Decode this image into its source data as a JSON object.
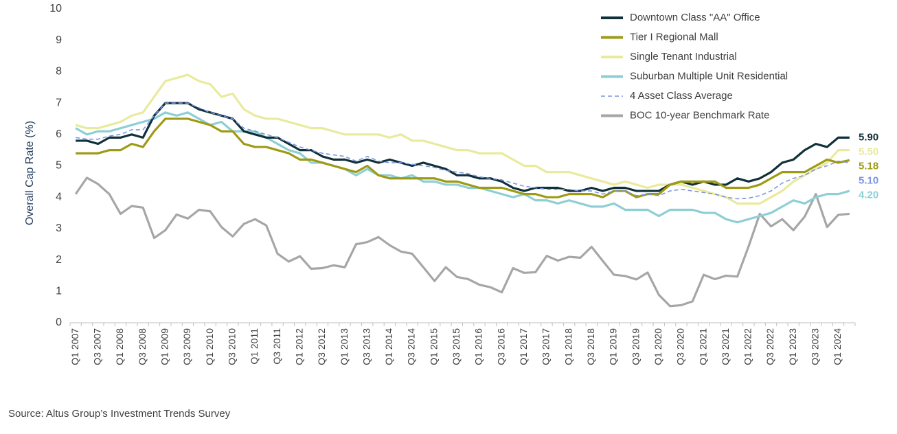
{
  "chart_data": {
    "type": "line",
    "y_label": "Overall Cap Rate (%)",
    "source": "Source:  Altus Group’s Investment Trends Survey",
    "categories": [
      "Q1 2007",
      null,
      "Q3 2007",
      null,
      "Q1 2008",
      null,
      "Q3 2008",
      null,
      "Q1 2009",
      null,
      "Q3 2009",
      null,
      "Q1 2010",
      null,
      "Q3 2010",
      null,
      "Q1 2011",
      null,
      "Q3 2011",
      null,
      "Q1 2012",
      null,
      "Q3 2012",
      null,
      "Q1 2013",
      null,
      "Q3 2013",
      null,
      "Q1 2014",
      null,
      "Q3 2014",
      null,
      "Q1 2015",
      null,
      "Q3 2015",
      null,
      "Q1 2016",
      null,
      "Q3 2016",
      null,
      "Q1 2017",
      null,
      "Q3 2017",
      null,
      "Q1 2018",
      null,
      "Q3 2018",
      null,
      "Q1 2019",
      null,
      "Q3 2019",
      null,
      "Q1 2020",
      null,
      "Q3 2020",
      null,
      "Q1 2021",
      null,
      "Q3 2021",
      null,
      "Q1 2022",
      null,
      "Q3 2022",
      null,
      "Q1 2023",
      null,
      "Q3 2023",
      null,
      "Q1 2024",
      null
    ],
    "ylim": [
      0,
      10
    ],
    "yticks": [
      0,
      1,
      2,
      3,
      4,
      5,
      6,
      7,
      8,
      9,
      10
    ],
    "legend": "top-right",
    "series": [
      {
        "name": "Downtown Class \"AA\" Office",
        "color": "#10303a",
        "line_style": "solid",
        "values": [
          5.8,
          5.8,
          5.7,
          5.9,
          5.9,
          6.0,
          5.9,
          6.6,
          7.0,
          7.0,
          7.0,
          6.8,
          6.7,
          6.6,
          6.5,
          6.1,
          6.0,
          5.9,
          5.9,
          5.7,
          5.5,
          5.5,
          5.3,
          5.2,
          5.2,
          5.1,
          5.2,
          5.1,
          5.2,
          5.1,
          5.0,
          5.1,
          5.0,
          4.9,
          4.7,
          4.7,
          4.6,
          4.6,
          4.5,
          4.3,
          4.2,
          4.3,
          4.3,
          4.3,
          4.2,
          4.2,
          4.3,
          4.2,
          4.3,
          4.3,
          4.2,
          4.2,
          4.2,
          4.4,
          4.5,
          4.4,
          4.5,
          4.4,
          4.4,
          4.6,
          4.5,
          4.6,
          4.8,
          5.1,
          5.2,
          5.5,
          5.7,
          5.6,
          5.9,
          5.9
        ],
        "value_labels": [
          null,
          null,
          null,
          null,
          null,
          null,
          null,
          null,
          null,
          null,
          null,
          null,
          null,
          null,
          null,
          null,
          null,
          null,
          null,
          null,
          null,
          null,
          null,
          null,
          null,
          null,
          null,
          null,
          null,
          null,
          null,
          null,
          null,
          null,
          null,
          null,
          null,
          null,
          null,
          null,
          null,
          null,
          null,
          null,
          null,
          null,
          null,
          null,
          null,
          null,
          null,
          null,
          null,
          null,
          null,
          null,
          null,
          null,
          null,
          null,
          null,
          null,
          null,
          null,
          null,
          null,
          null,
          null,
          null,
          "5.90"
        ]
      },
      {
        "name": "Tier I Regional Mall",
        "color": "#9e9a14",
        "line_style": "solid",
        "values": [
          5.4,
          5.4,
          5.4,
          5.5,
          5.5,
          5.7,
          5.6,
          6.1,
          6.5,
          6.5,
          6.5,
          6.4,
          6.3,
          6.1,
          6.1,
          5.7,
          5.6,
          5.6,
          5.5,
          5.4,
          5.2,
          5.2,
          5.1,
          5.0,
          4.9,
          4.8,
          5.0,
          4.7,
          4.6,
          4.6,
          4.6,
          4.6,
          4.6,
          4.5,
          4.5,
          4.4,
          4.3,
          4.3,
          4.3,
          4.2,
          4.1,
          4.1,
          4.0,
          4.0,
          4.1,
          4.1,
          4.1,
          4.0,
          4.2,
          4.2,
          4.0,
          4.1,
          4.1,
          4.4,
          4.5,
          4.5,
          4.5,
          4.5,
          4.3,
          4.3,
          4.3,
          4.4,
          4.6,
          4.8,
          4.8,
          4.8,
          5.0,
          5.2,
          5.1,
          5.18
        ],
        "value_labels": [
          null,
          null,
          null,
          null,
          null,
          null,
          null,
          null,
          null,
          null,
          null,
          null,
          null,
          null,
          null,
          null,
          null,
          null,
          null,
          null,
          null,
          null,
          null,
          null,
          null,
          null,
          null,
          null,
          null,
          null,
          null,
          null,
          null,
          null,
          null,
          null,
          null,
          null,
          null,
          null,
          null,
          null,
          null,
          null,
          null,
          null,
          null,
          null,
          null,
          null,
          null,
          null,
          null,
          null,
          null,
          null,
          null,
          null,
          null,
          null,
          null,
          null,
          null,
          null,
          null,
          null,
          null,
          null,
          null,
          "5.18"
        ]
      },
      {
        "name": "Single Tenant Industrial",
        "color": "#e9ea9c",
        "line_style": "solid",
        "values": [
          6.3,
          6.2,
          6.2,
          6.3,
          6.4,
          6.6,
          6.7,
          7.2,
          7.7,
          7.8,
          7.9,
          7.7,
          7.6,
          7.2,
          7.3,
          6.8,
          6.6,
          6.5,
          6.5,
          6.4,
          6.3,
          6.2,
          6.2,
          6.1,
          6.0,
          6.0,
          6.0,
          6.0,
          5.9,
          6.0,
          5.8,
          5.8,
          5.7,
          5.6,
          5.5,
          5.5,
          5.4,
          5.4,
          5.4,
          5.2,
          5.0,
          5.0,
          4.8,
          4.8,
          4.8,
          4.7,
          4.6,
          4.5,
          4.4,
          4.5,
          4.4,
          4.3,
          4.4,
          4.4,
          4.4,
          4.3,
          4.2,
          4.1,
          4.0,
          3.8,
          3.8,
          3.8,
          4.0,
          4.2,
          4.5,
          4.7,
          4.9,
          5.1,
          5.5,
          5.5
        ],
        "value_labels": [
          null,
          null,
          null,
          null,
          null,
          null,
          null,
          null,
          null,
          null,
          null,
          null,
          null,
          null,
          null,
          null,
          null,
          null,
          null,
          null,
          null,
          null,
          null,
          null,
          null,
          null,
          null,
          null,
          null,
          null,
          null,
          null,
          null,
          null,
          null,
          null,
          null,
          null,
          null,
          null,
          null,
          null,
          null,
          null,
          null,
          null,
          null,
          null,
          null,
          null,
          null,
          null,
          null,
          null,
          null,
          null,
          null,
          null,
          null,
          null,
          null,
          null,
          null,
          null,
          null,
          null,
          null,
          null,
          null,
          "5.50"
        ]
      },
      {
        "name": "Suburban Multiple Unit Residential",
        "color": "#8dcfd4",
        "line_style": "solid",
        "values": [
          6.2,
          6.0,
          6.1,
          6.1,
          6.2,
          6.3,
          6.4,
          6.5,
          6.7,
          6.6,
          6.7,
          6.5,
          6.3,
          6.4,
          6.1,
          6.1,
          6.1,
          5.9,
          5.7,
          5.5,
          5.4,
          5.1,
          5.1,
          5.0,
          4.9,
          4.7,
          4.9,
          4.7,
          4.7,
          4.6,
          4.7,
          4.5,
          4.5,
          4.4,
          4.4,
          4.3,
          4.3,
          4.2,
          4.1,
          4.0,
          4.1,
          3.9,
          3.9,
          3.8,
          3.9,
          3.8,
          3.7,
          3.7,
          3.8,
          3.6,
          3.6,
          3.6,
          3.4,
          3.6,
          3.6,
          3.6,
          3.5,
          3.5,
          3.3,
          3.2,
          3.3,
          3.4,
          3.5,
          3.7,
          3.9,
          3.8,
          4.0,
          4.1,
          4.1,
          4.2
        ],
        "value_labels": [
          null,
          null,
          null,
          null,
          null,
          null,
          null,
          null,
          null,
          null,
          null,
          null,
          null,
          null,
          null,
          null,
          null,
          null,
          null,
          null,
          null,
          null,
          null,
          null,
          null,
          null,
          null,
          null,
          null,
          null,
          null,
          null,
          null,
          null,
          null,
          null,
          null,
          null,
          null,
          null,
          null,
          null,
          null,
          null,
          null,
          null,
          null,
          null,
          null,
          null,
          null,
          null,
          null,
          null,
          null,
          null,
          null,
          null,
          null,
          null,
          null,
          null,
          null,
          null,
          null,
          null,
          null,
          null,
          null,
          "4.20"
        ]
      },
      {
        "name": "4 Asset Class Average",
        "color": "#7c94e4",
        "line_style": "dashed",
        "values": [
          5.9,
          5.85,
          5.85,
          5.95,
          6.0,
          6.15,
          6.15,
          6.6,
          7.0,
          7.0,
          7.0,
          6.85,
          6.7,
          6.6,
          6.5,
          6.2,
          6.1,
          6.0,
          5.9,
          5.75,
          5.6,
          5.5,
          5.4,
          5.35,
          5.3,
          5.15,
          5.3,
          5.15,
          5.1,
          5.1,
          5.05,
          5.0,
          4.95,
          4.85,
          4.8,
          4.75,
          4.65,
          4.6,
          4.55,
          4.45,
          4.35,
          4.3,
          4.25,
          4.25,
          4.25,
          4.2,
          4.2,
          4.1,
          4.2,
          4.2,
          4.05,
          4.1,
          4.05,
          4.2,
          4.25,
          4.2,
          4.15,
          4.1,
          4.0,
          3.95,
          3.97,
          4.05,
          4.2,
          4.45,
          4.6,
          4.7,
          4.9,
          5.0,
          5.15,
          5.1
        ],
        "value_labels": [
          null,
          null,
          null,
          null,
          null,
          null,
          null,
          null,
          null,
          null,
          null,
          null,
          null,
          null,
          null,
          null,
          null,
          null,
          null,
          null,
          null,
          null,
          null,
          null,
          null,
          null,
          null,
          null,
          null,
          null,
          null,
          null,
          null,
          null,
          null,
          null,
          null,
          null,
          null,
          null,
          null,
          null,
          null,
          null,
          null,
          null,
          null,
          null,
          null,
          null,
          null,
          null,
          null,
          null,
          null,
          null,
          null,
          null,
          null,
          null,
          null,
          null,
          null,
          null,
          null,
          null,
          null,
          null,
          null,
          "5.10"
        ]
      },
      {
        "name": "BOC 10-year Benchmark Rate",
        "color": "#a6a6a6",
        "line_style": "solid",
        "values": [
          4.1,
          4.62,
          4.42,
          4.1,
          3.47,
          3.72,
          3.67,
          2.7,
          2.95,
          3.45,
          3.32,
          3.6,
          3.55,
          3.05,
          2.75,
          3.15,
          3.3,
          3.1,
          2.2,
          1.95,
          2.12,
          1.72,
          1.74,
          1.83,
          1.77,
          2.5,
          2.57,
          2.73,
          2.47,
          2.27,
          2.2,
          1.77,
          1.33,
          1.77,
          1.46,
          1.39,
          1.21,
          1.13,
          0.97,
          1.74,
          1.59,
          1.61,
          2.13,
          1.98,
          2.1,
          2.07,
          2.42,
          1.97,
          1.53,
          1.49,
          1.38,
          1.6,
          0.89,
          0.53,
          0.56,
          0.68,
          1.53,
          1.39,
          1.5,
          1.47,
          2.43,
          3.47,
          3.07,
          3.3,
          2.95,
          3.38,
          4.1,
          3.05,
          3.44,
          3.47
        ]
      }
    ]
  }
}
